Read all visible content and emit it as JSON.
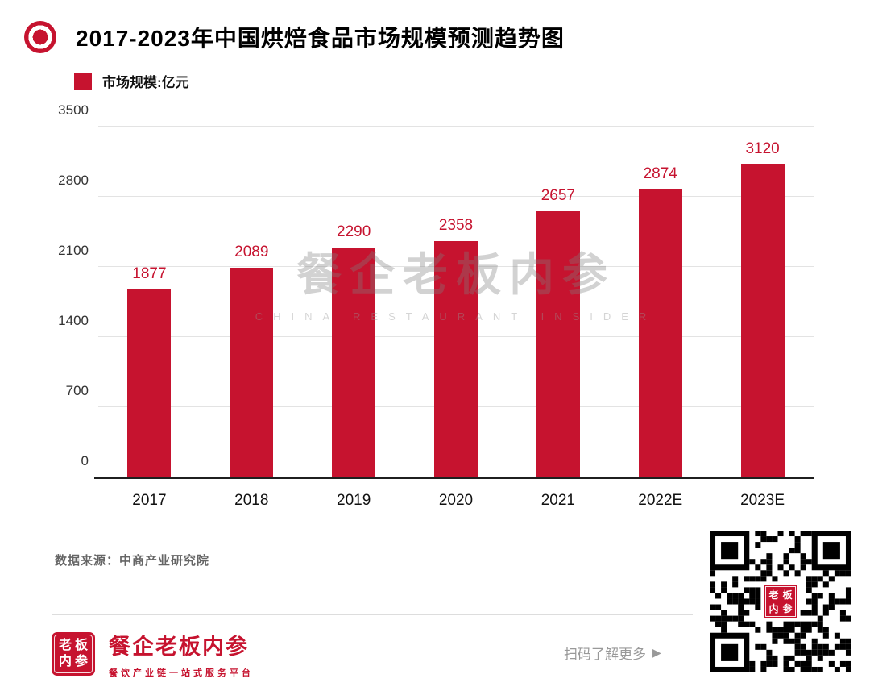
{
  "colors": {
    "accent": "#c6132f",
    "axis": "#1f1f1f",
    "grid": "#e3e3e3",
    "qr": "#000000",
    "muted": "#999999"
  },
  "header": {
    "title": "2017-2023年中国烘焙食品市场规模预测趋势图"
  },
  "legend": {
    "label": "市场规模:亿元"
  },
  "chart_data": {
    "type": "bar",
    "categories": [
      "2017",
      "2018",
      "2019",
      "2020",
      "2021",
      "2022E",
      "2023E"
    ],
    "values": [
      1877,
      2089,
      2290,
      2358,
      2657,
      2874,
      3120
    ],
    "title": "2017-2023年中国烘焙食品市场规模预测趋势图",
    "xlabel": "",
    "ylabel": "市场规模:亿元",
    "ylim": [
      0,
      3500
    ],
    "yticks": [
      0,
      700,
      1400,
      2100,
      2800,
      3500
    ],
    "bar_color": "#c6132f",
    "grid": true,
    "value_labels": true,
    "legend_position": "top-left"
  },
  "watermark": {
    "line1": "餐企老板内参",
    "line2": "CHINA RESTAURANT INSIDER"
  },
  "source": {
    "text": "数据来源：中商产业研究院"
  },
  "footer": {
    "seal_chars": [
      "老",
      "板",
      "内",
      "参"
    ],
    "brand": "餐企老板内参",
    "tagline": "餐饮产业链一站式服务平台",
    "qr_caption": "扫码了解更多",
    "qr_arrow": "▶"
  }
}
